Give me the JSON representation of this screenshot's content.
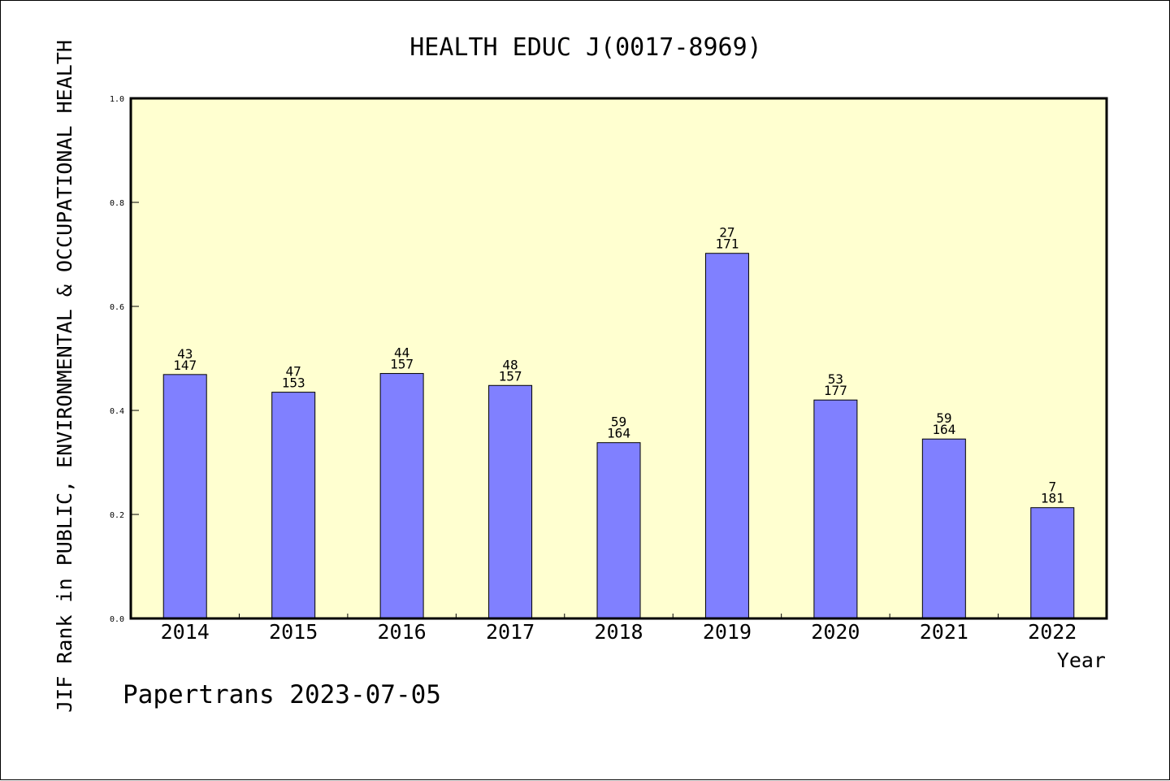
{
  "chart_data": {
    "type": "bar",
    "title": "HEALTH EDUC J(0017-8969)",
    "xlabel": "Year",
    "ylabel": "JIF Rank in PUBLIC, ENVIRONMENTAL & OCCUPATIONAL HEALTH",
    "categories": [
      "2014",
      "2015",
      "2016",
      "2017",
      "2018",
      "2019",
      "2020",
      "2021",
      "2022"
    ],
    "series": [
      {
        "values": [
          0.469,
          0.435,
          0.471,
          0.448,
          0.338,
          0.702,
          0.42,
          0.345,
          0.213
        ],
        "rank": [
          "43",
          "47",
          "44",
          "48",
          "59",
          "27",
          "53",
          "59",
          "7"
        ],
        "total": [
          "147",
          "153",
          "157",
          "157",
          "164",
          "171",
          "177",
          "164",
          "181"
        ]
      }
    ],
    "ylim": [
      0,
      1
    ],
    "yticks": [
      "0.0",
      "0.2",
      "0.4",
      "0.6",
      "0.8",
      "1.0"
    ],
    "grid": false,
    "colors": {
      "bar": "#8080ff",
      "plot_bg": "#ffffd0",
      "axis": "#000000"
    }
  },
  "footer": "Papertrans 2023-07-05"
}
